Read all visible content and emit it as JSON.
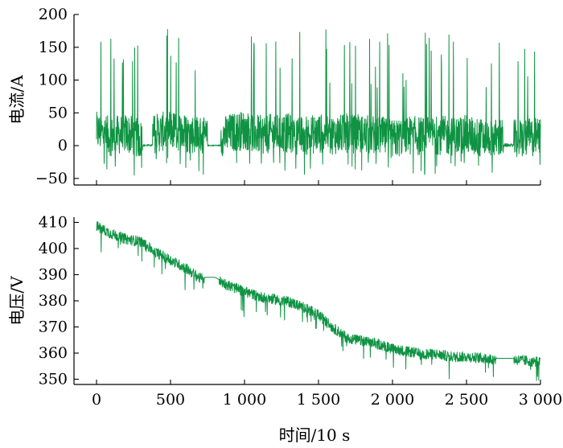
{
  "chart_data": [
    {
      "type": "line",
      "ylabel": "电流/A",
      "xlabel": "",
      "xlim": [
        0,
        3000
      ],
      "ylim": [
        -60,
        200
      ],
      "yticks": [
        -50,
        0,
        50,
        100,
        150,
        200
      ],
      "ytick_labels": [
        "−50",
        "0",
        "50",
        "100",
        "150",
        "200"
      ],
      "xticks": [
        0,
        500,
        1000,
        1500,
        2000,
        2500,
        3000
      ],
      "xtick_labels": [],
      "line_color": "#0f9343",
      "series": [
        {
          "x": [
            0,
            100,
            200,
            300,
            400,
            500,
            600,
            700,
            750,
            800,
            900,
            1000,
            1100,
            1200,
            1300,
            1400,
            1500,
            1600,
            1700,
            1800,
            1900,
            2000,
            2100,
            2200,
            2300,
            2400,
            2500,
            2600,
            2700,
            2800,
            2900,
            3000
          ],
          "values": [
            25,
            10,
            20,
            0,
            20,
            30,
            20,
            15,
            0,
            0,
            20,
            30,
            15,
            20,
            20,
            10,
            20,
            15,
            20,
            15,
            15,
            0,
            15,
            10,
            15,
            10,
            15,
            5,
            5,
            0,
            5,
            10
          ]
        }
      ]
    },
    {
      "type": "line",
      "ylabel": "电压/V",
      "xlabel": "时间/10 s",
      "xlim": [
        0,
        3000
      ],
      "ylim": [
        348,
        412
      ],
      "yticks": [
        350,
        360,
        370,
        380,
        390,
        400,
        410
      ],
      "ytick_labels": [
        "350",
        "360",
        "370",
        "380",
        "390",
        "400",
        "410"
      ],
      "xticks": [
        0,
        500,
        1000,
        1500,
        2000,
        2500,
        3000
      ],
      "xtick_labels": [
        "0",
        "500",
        "1 000",
        "1 500",
        "2 000",
        "2 500",
        "3 000"
      ],
      "line_color": "#0f9343",
      "series": [
        {
          "x": [
            0,
            100,
            200,
            300,
            400,
            500,
            600,
            700,
            750,
            800,
            900,
            1000,
            1100,
            1200,
            1300,
            1400,
            1500,
            1600,
            1700,
            1800,
            1900,
            2000,
            2100,
            2200,
            2300,
            2400,
            2500,
            2600,
            2700,
            2800,
            2900,
            3000
          ],
          "values": [
            409,
            406,
            404,
            403,
            399,
            396,
            393,
            389,
            389,
            389,
            386,
            384,
            382,
            381,
            380,
            378,
            375,
            370,
            366,
            365,
            364,
            362,
            361,
            360,
            360,
            359,
            359,
            358.5,
            358,
            358,
            357.5,
            357
          ]
        }
      ]
    }
  ]
}
